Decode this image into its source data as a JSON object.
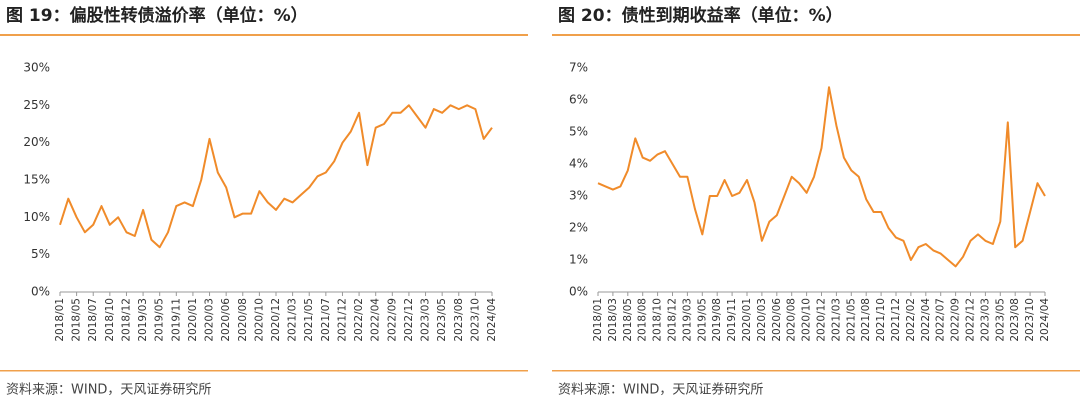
{
  "chart_data": [
    {
      "type": "line",
      "title": "图 19：偏股性转债溢价率（单位：%）",
      "source": "资料来源：WIND，天风证券研究所",
      "categories": [
        "2018/01",
        null,
        "2018/05",
        null,
        "2018/07",
        null,
        "2018/10",
        null,
        "2018/12",
        null,
        "2019/03",
        null,
        "2019/05",
        null,
        "2019/11",
        null,
        "2020/01",
        null,
        "2020/03",
        null,
        "2020/06",
        null,
        "2020/08",
        null,
        "2020/10",
        null,
        "2020/12",
        null,
        "2021/03",
        null,
        "2021/05",
        null,
        "2021/07",
        null,
        "2021/12",
        null,
        "2022/02",
        null,
        "2022/04",
        null,
        "2022/09",
        null,
        "2022/12",
        null,
        "2023/03",
        null,
        "2023/05",
        null,
        "2023/08",
        null,
        "2023/10",
        null,
        "2024/04"
      ],
      "series": [
        {
          "name": "偏股性转债溢价率",
          "color": "#f08b2a",
          "values": [
            9,
            12.5,
            10,
            8,
            9,
            11.5,
            9,
            10,
            8,
            7.5,
            11,
            7,
            6,
            8,
            11.5,
            12,
            11.5,
            15,
            20.5,
            16,
            14,
            10,
            10.5,
            10.5,
            13.5,
            12,
            11,
            12.5,
            12,
            13,
            14,
            15.5,
            16,
            17.5,
            20,
            21.5,
            24,
            17,
            22,
            22.5,
            24,
            24,
            25,
            23.5,
            22,
            24.5,
            24,
            25,
            24.5,
            25,
            24.5,
            20.5,
            22
          ]
        }
      ],
      "ylim": [
        0,
        30
      ],
      "yticks": [
        {
          "value": 0,
          "label": "0%"
        },
        {
          "value": 5,
          "label": "5%"
        },
        {
          "value": 10,
          "label": "10%"
        },
        {
          "value": 15,
          "label": "15%"
        },
        {
          "value": 20,
          "label": "20%"
        },
        {
          "value": 25,
          "label": "25%"
        },
        {
          "value": 30,
          "label": "30%"
        }
      ]
    },
    {
      "type": "line",
      "title": "图 20：债性到期收益率（单位：%）",
      "source": "资料来源：WIND，天风证券研究所",
      "categories": [
        "2018/01",
        null,
        "2018/03",
        null,
        "2018/05",
        null,
        "2018/08",
        null,
        "2018/10",
        null,
        "2018/12",
        null,
        "2019/03",
        null,
        "2019/05",
        null,
        "2019/08",
        null,
        "2019/11",
        null,
        "2020/01",
        null,
        "2020/03",
        null,
        "2020/06",
        null,
        "2020/08",
        null,
        "2020/10",
        null,
        "2020/12",
        null,
        "2021/03",
        null,
        "2021/05",
        null,
        "2021/08",
        null,
        "2021/10",
        null,
        "2021/12",
        null,
        "2022/02",
        null,
        "2022/04",
        null,
        "2022/07",
        null,
        "2022/09",
        null,
        "2022/12",
        null,
        "2023/03",
        null,
        "2023/05",
        null,
        "2023/08",
        null,
        "2023/10",
        null,
        "2024/04"
      ],
      "series": [
        {
          "name": "债性到期收益率",
          "color": "#f08b2a",
          "values": [
            3.4,
            3.3,
            3.2,
            3.3,
            3.8,
            4.8,
            4.2,
            4.1,
            4.3,
            4.4,
            4.0,
            3.6,
            3.6,
            2.6,
            1.8,
            3.0,
            3.0,
            3.5,
            3.0,
            3.1,
            3.5,
            2.8,
            1.6,
            2.2,
            2.4,
            3.0,
            3.6,
            3.4,
            3.1,
            3.6,
            4.5,
            6.4,
            5.2,
            4.2,
            3.8,
            3.6,
            2.9,
            2.5,
            2.5,
            2.0,
            1.7,
            1.6,
            1.0,
            1.4,
            1.5,
            1.3,
            1.2,
            1.0,
            0.8,
            1.1,
            1.6,
            1.8,
            1.6,
            1.5,
            2.2,
            5.3,
            1.4,
            1.6,
            2.5,
            3.4,
            3.0
          ]
        }
      ],
      "ylim": [
        0,
        7
      ],
      "yticks": [
        {
          "value": 0,
          "label": "0%"
        },
        {
          "value": 1,
          "label": "1%"
        },
        {
          "value": 2,
          "label": "2%"
        },
        {
          "value": 3,
          "label": "3%"
        },
        {
          "value": 4,
          "label": "4%"
        },
        {
          "value": 5,
          "label": "5%"
        },
        {
          "value": 6,
          "label": "6%"
        },
        {
          "value": 7,
          "label": "7%"
        }
      ]
    }
  ]
}
